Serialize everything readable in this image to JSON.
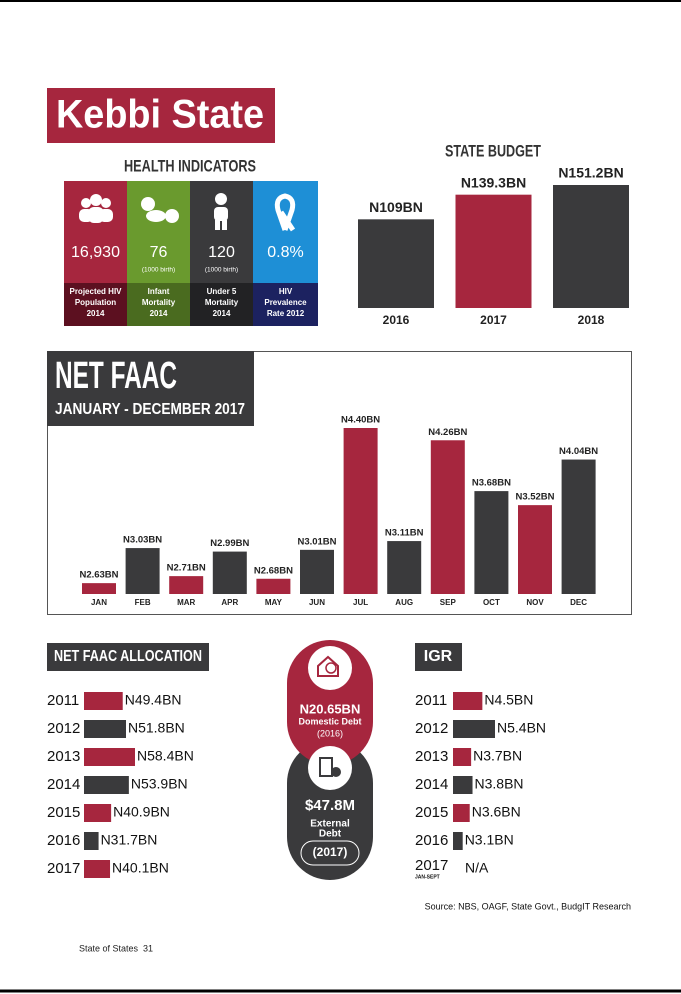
{
  "header": {
    "title": "Kebbi State"
  },
  "health": {
    "title": "HEALTH INDICATORS",
    "items": [
      {
        "value": "16,930",
        "label": [
          "Projected HIV",
          "Population",
          "2014"
        ]
      },
      {
        "value": "76",
        "note": "(1000 birth)",
        "label": [
          "Infant",
          "Mortality",
          "2014"
        ]
      },
      {
        "value": "120",
        "note": "(1000 birth)",
        "label": [
          "Under 5",
          "Mortality",
          "2014"
        ]
      },
      {
        "value": "0.8%",
        "label": [
          "HIV",
          "Prevalence",
          "Rate 2012"
        ]
      }
    ]
  },
  "chart_data": [
    {
      "type": "bar",
      "title": "STATE BUDGET",
      "categories": [
        "2016",
        "2017",
        "2018"
      ],
      "values": [
        109,
        139.3,
        151.2
      ],
      "value_labels": [
        "N109BN",
        "N139.3BN",
        "N151.2BN"
      ],
      "colors": [
        "#3a3a3c",
        "#a6263e",
        "#3a3a3c"
      ]
    },
    {
      "type": "bar",
      "title": "NET FAAC",
      "subtitle": "JANUARY - DECEMBER 2017",
      "categories": [
        "JAN",
        "FEB",
        "MAR",
        "APR",
        "MAY",
        "JUN",
        "JUL",
        "AUG",
        "SEP",
        "OCT",
        "NOV",
        "DEC"
      ],
      "values": [
        2.63,
        3.03,
        2.71,
        2.99,
        2.68,
        3.01,
        4.4,
        3.11,
        4.26,
        3.68,
        3.52,
        4.04
      ],
      "value_labels": [
        "N2.63BN",
        "N3.03BN",
        "N2.71BN",
        "N2.99BN",
        "N2.68BN",
        "N3.01BN",
        "N4.40BN",
        "N3.11BN",
        "N4.26BN",
        "N3.68BN",
        "N3.52BN",
        "N4.04BN"
      ],
      "colors": [
        "#a6263e",
        "#3a3a3c",
        "#a6263e",
        "#3a3a3c",
        "#a6263e",
        "#3a3a3c",
        "#a6263e",
        "#3a3a3c",
        "#a6263e",
        "#3a3a3c",
        "#a6263e",
        "#3a3a3c"
      ]
    },
    {
      "type": "hbar",
      "title": "NET FAAC ALLOCATION",
      "categories": [
        "2011",
        "2012",
        "2013",
        "2014",
        "2015",
        "2016",
        "2017"
      ],
      "values": [
        49.4,
        51.8,
        58.4,
        53.9,
        40.9,
        31.7,
        40.1
      ],
      "value_labels": [
        "N49.4BN",
        "N51.8BN",
        "N58.4BN",
        "N53.9BN",
        "N40.9BN",
        "N31.7BN",
        "N40.1BN"
      ],
      "colors": [
        "#a6263e",
        "#3a3a3c",
        "#a6263e",
        "#3a3a3c",
        "#a6263e",
        "#3a3a3c",
        "#a6263e"
      ]
    },
    {
      "type": "hbar",
      "title": "IGR",
      "categories": [
        "2011",
        "2012",
        "2013",
        "2014",
        "2015",
        "2016",
        "2017"
      ],
      "category_notes": [
        null,
        null,
        null,
        null,
        null,
        null,
        "JAN-SEPT"
      ],
      "values": [
        4.5,
        5.4,
        3.7,
        3.8,
        3.6,
        3.1,
        null
      ],
      "value_labels": [
        "N4.5BN",
        "N5.4BN",
        "N3.7BN",
        "N3.8BN",
        "N3.6BN",
        "N3.1BN",
        "N/A"
      ],
      "colors": [
        "#a6263e",
        "#3a3a3c",
        "#a6263e",
        "#3a3a3c",
        "#a6263e",
        "#3a3a3c",
        "#a6263e"
      ]
    }
  ],
  "debt": {
    "domestic": {
      "value": "N20.65BN",
      "label": "Domestic Debt",
      "year": "(2016)"
    },
    "external": {
      "value": "$47.8M",
      "label": [
        "External",
        "Debt"
      ],
      "year": "(2017)"
    }
  },
  "source": "Source: NBS, OAGF, State Govt., BudgIT Research",
  "footer": {
    "publication": "State of States",
    "page": "31"
  }
}
